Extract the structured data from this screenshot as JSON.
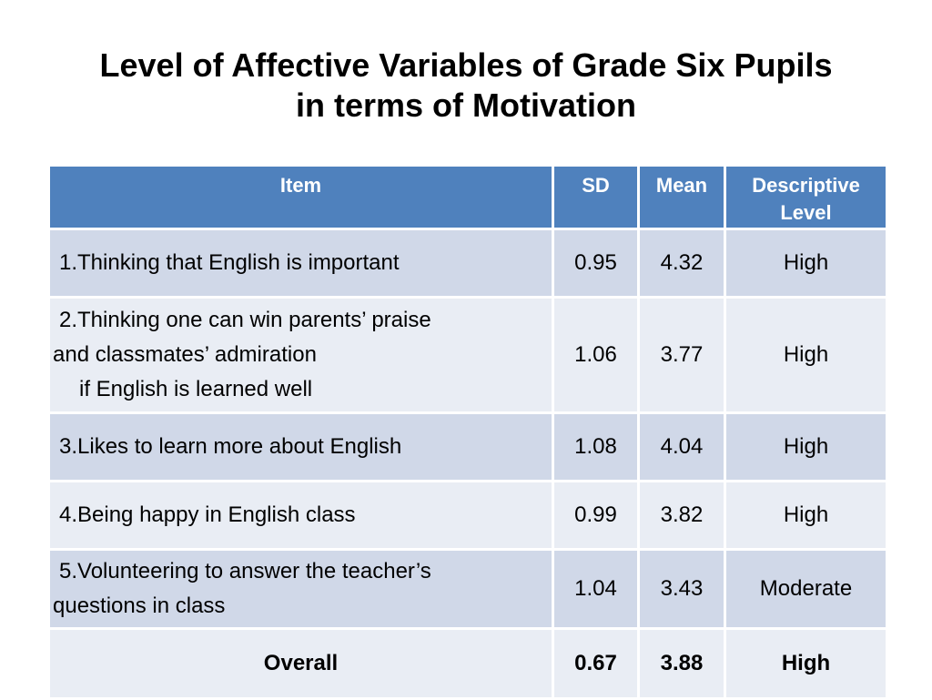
{
  "slide": {
    "title_line1": "Level of Affective Variables of Grade Six Pupils",
    "title_line2": "in terms of Motivation"
  },
  "table": {
    "headers": {
      "item": "Item",
      "sd": "SD",
      "mean": "Mean",
      "level_line1": "Descriptive",
      "level_line2": "Level"
    },
    "rows": [
      {
        "item_lines": [
          "1.Thinking that English is important"
        ],
        "sd": "0.95",
        "mean": "4.32",
        "level": "High"
      },
      {
        "item_lines": [
          "2.Thinking one can win parents’ praise",
          "and classmates’ admiration",
          "if  English is learned well"
        ],
        "sd": "1.06",
        "mean": "3.77",
        "level": "High"
      },
      {
        "item_lines": [
          "3.Likes to learn more about English"
        ],
        "sd": "1.08",
        "mean": "4.04",
        "level": "High"
      },
      {
        "item_lines": [
          "4.Being happy in English class"
        ],
        "sd": "0.99",
        "mean": "3.82",
        "level": "High"
      },
      {
        "item_lines": [
          "5.Volunteering to answer the teacher’s",
          "questions in class"
        ],
        "sd": "1.04",
        "mean": "3.43",
        "level": "Moderate"
      }
    ],
    "overall": {
      "label": "Overall",
      "sd": "0.67",
      "mean": "3.88",
      "level": "High"
    }
  },
  "colors": {
    "header_bg": "#4f81bd",
    "row_odd_bg": "#d0d8e8",
    "row_even_bg": "#e9edf4"
  }
}
